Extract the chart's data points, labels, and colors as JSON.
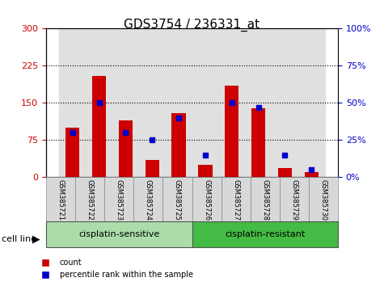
{
  "title": "GDS3754 / 236331_at",
  "categories": [
    "GSM385721",
    "GSM385722",
    "GSM385723",
    "GSM385724",
    "GSM385725",
    "GSM385726",
    "GSM385727",
    "GSM385728",
    "GSM385729",
    "GSM385730"
  ],
  "count_values": [
    100,
    205,
    115,
    35,
    130,
    25,
    185,
    140,
    18,
    10
  ],
  "percentile_values": [
    30,
    50,
    30,
    25,
    40,
    15,
    50,
    47,
    15,
    5
  ],
  "group_labels": [
    "cisplatin-sensitive",
    "cisplatin-resistant"
  ],
  "group_sizes": [
    5,
    5
  ],
  "left_ylim": [
    0,
    300
  ],
  "right_ylim": [
    0,
    100
  ],
  "left_yticks": [
    0,
    75,
    150,
    225,
    300
  ],
  "right_yticks": [
    0,
    25,
    50,
    75,
    100
  ],
  "right_yticklabels": [
    "0%",
    "25%",
    "50%",
    "75%",
    "100%"
  ],
  "bar_color_red": "#cc0000",
  "marker_color_blue": "#0000cc",
  "group_bg_colors": [
    "#ccffcc",
    "#66dd66"
  ],
  "grid_color": "#000000",
  "tick_label_color_left": "#cc0000",
  "tick_label_color_right": "#0000cc",
  "cell_line_label": "cell line",
  "legend_count": "count",
  "legend_percentile": "percentile rank within the sample",
  "xticklabel_rotation": -90
}
